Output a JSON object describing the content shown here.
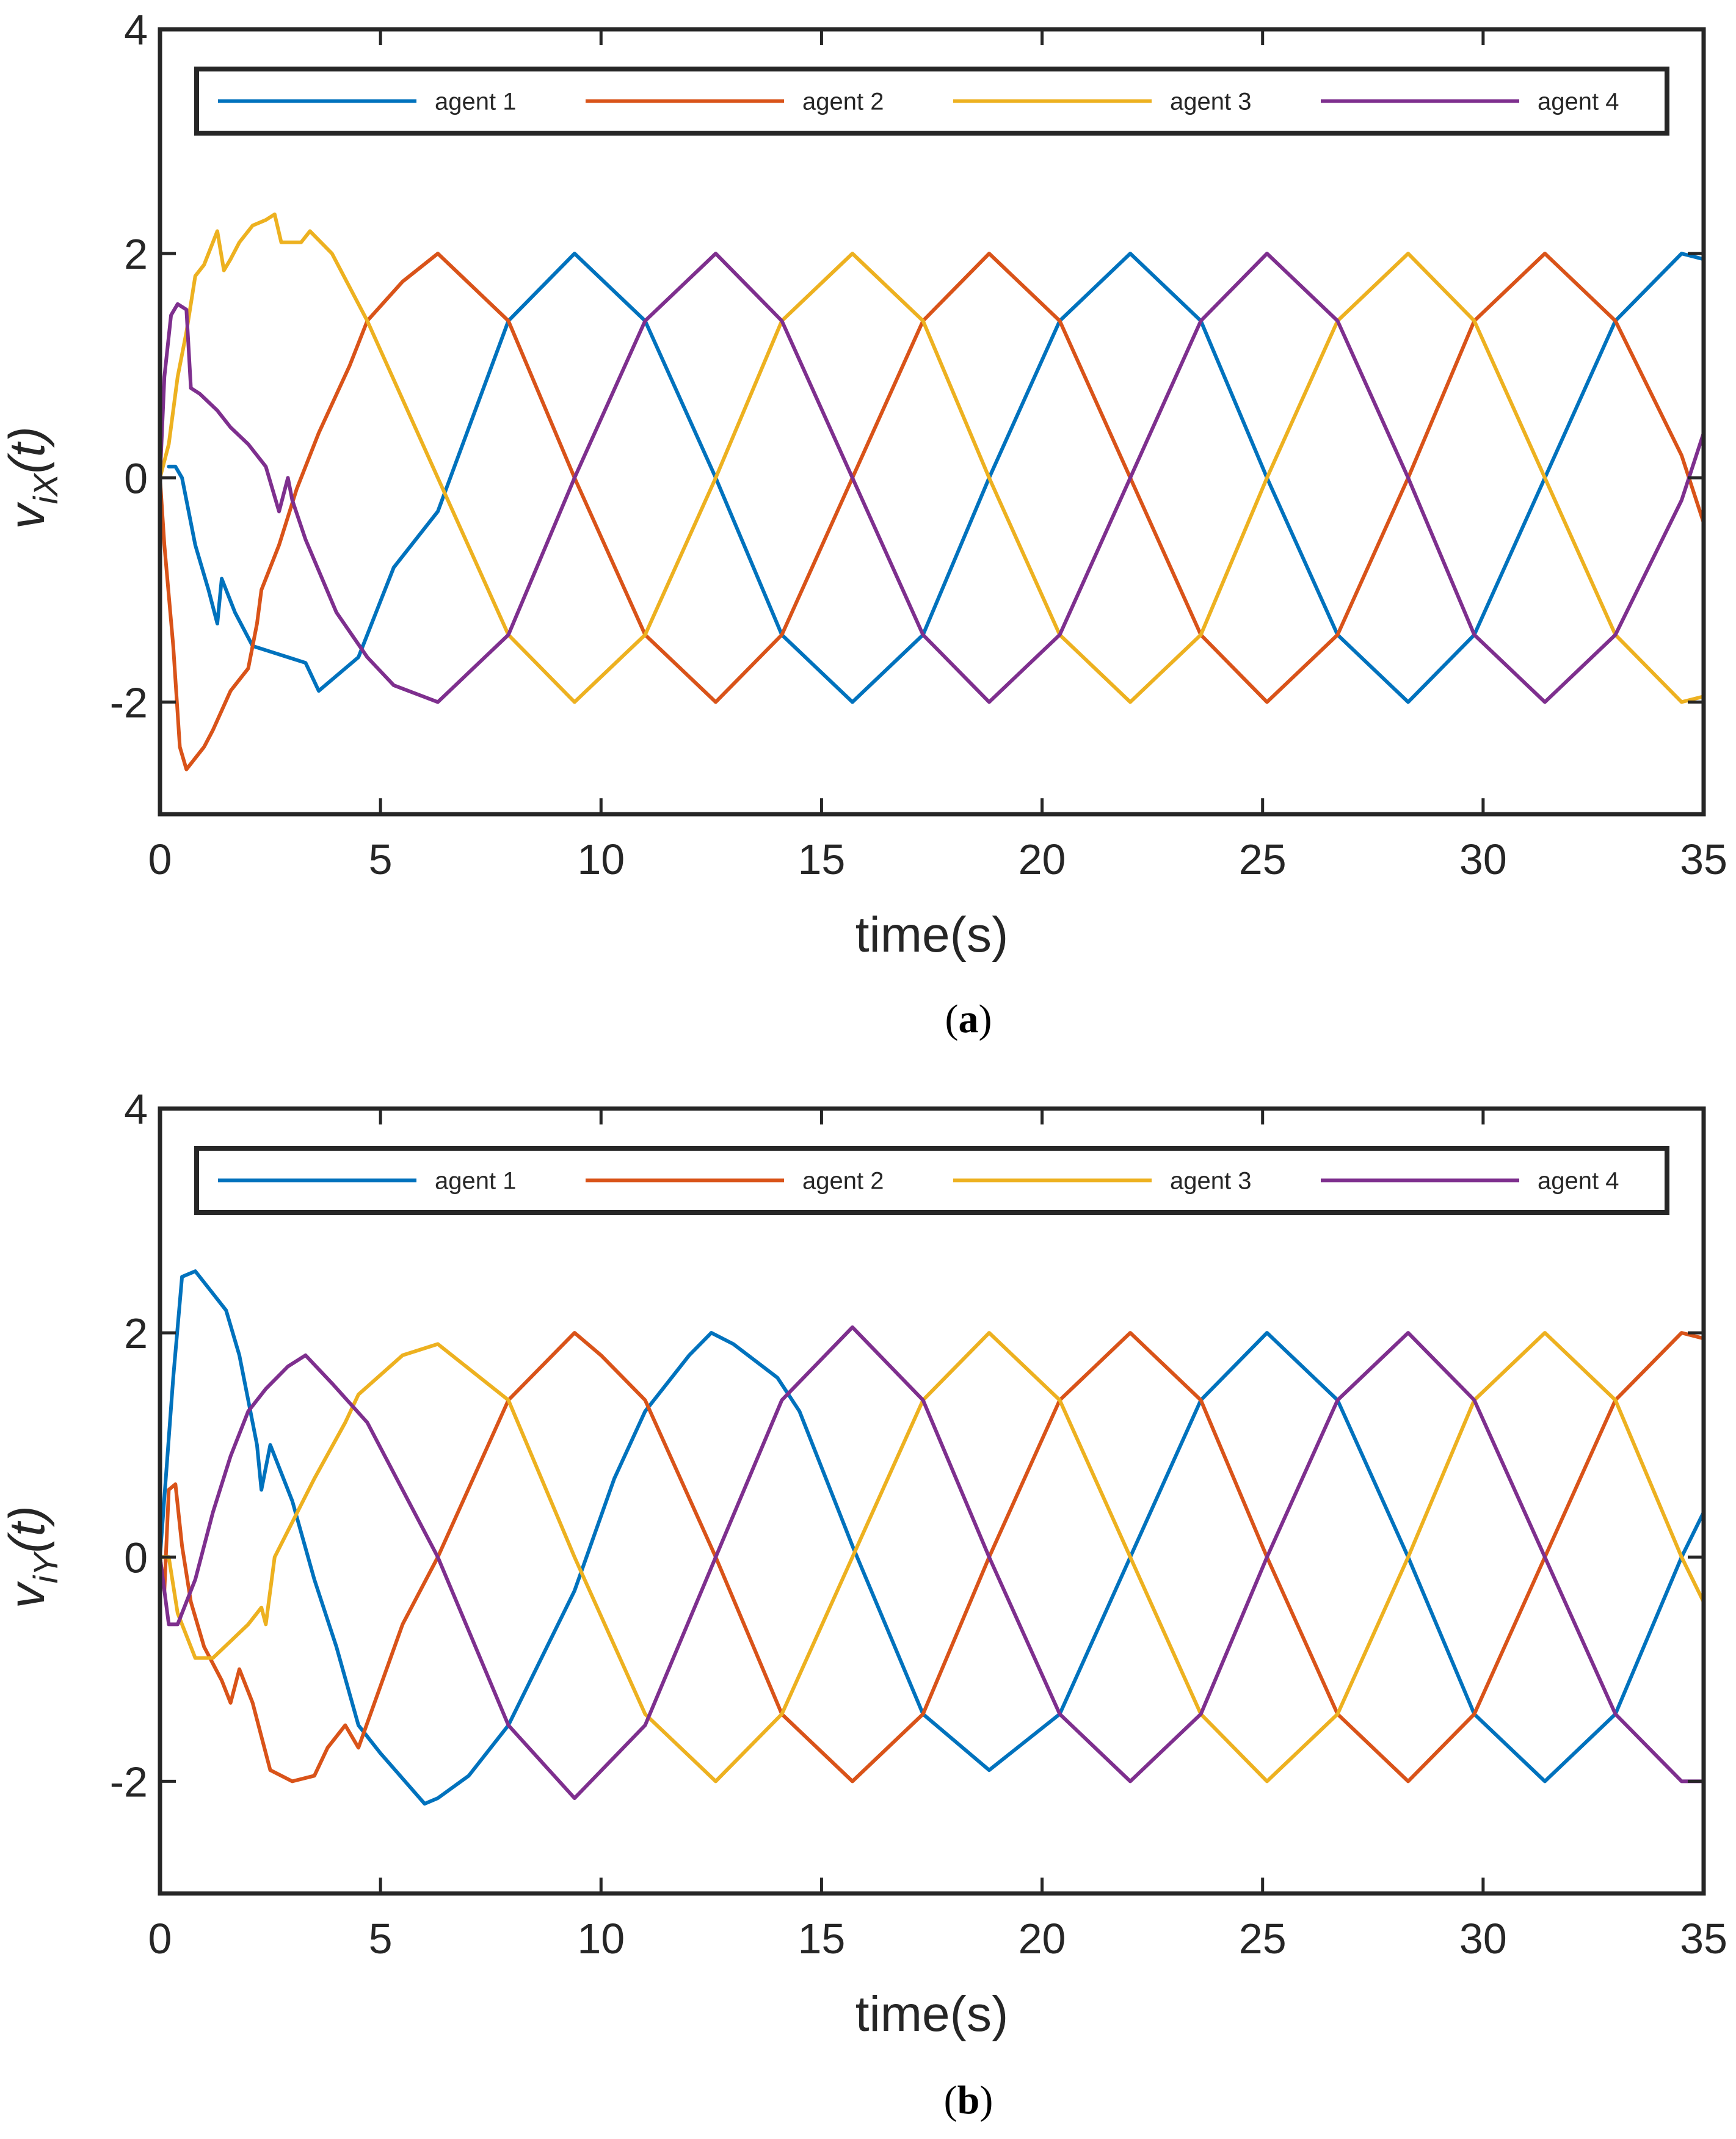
{
  "chart_data": [
    {
      "type": "line",
      "panel_label": "a",
      "ylabel": {
        "main": "v",
        "sub": "iX",
        "arg": "(t)"
      },
      "xlabel": "time(s)",
      "xlim": [
        0,
        35
      ],
      "ylim": [
        -3,
        4
      ],
      "xticks": [
        0,
        5,
        10,
        15,
        20,
        25,
        30,
        35
      ],
      "yticks": [
        -2,
        0,
        2,
        4
      ],
      "grid": false,
      "legend_position": "top",
      "series": [
        {
          "name": "agent 1",
          "color": "#0072BD",
          "x": [
            0.2,
            0.35,
            0.5,
            0.8,
            1.1,
            1.3,
            1.4,
            1.7,
            2.1,
            2.5,
            2.9,
            3.3,
            3.6,
            4.5,
            5.3,
            6.3,
            7.9,
            9.4,
            11.0,
            12.6,
            14.1,
            15.7,
            17.3,
            18.8,
            20.4,
            22.0,
            23.6,
            25.1,
            26.7,
            28.3,
            29.8,
            31.4,
            33.0,
            34.5,
            35.0
          ],
          "y": [
            0.1,
            0.1,
            0.0,
            -0.6,
            -1.0,
            -1.3,
            -0.9,
            -1.2,
            -1.5,
            -1.55,
            -1.6,
            -1.65,
            -1.9,
            -1.6,
            -0.8,
            -0.3,
            1.4,
            2.0,
            1.4,
            0.0,
            -1.4,
            -2.0,
            -1.4,
            0.0,
            1.4,
            2.0,
            1.4,
            0.0,
            -1.4,
            -2.0,
            -1.4,
            0.0,
            1.4,
            2.0,
            1.95
          ]
        },
        {
          "name": "agent 2",
          "color": "#D95319",
          "x": [
            0.0,
            0.1,
            0.3,
            0.45,
            0.6,
            1.0,
            1.2,
            1.6,
            2.0,
            2.2,
            2.3,
            2.7,
            3.1,
            3.6,
            4.3,
            4.7,
            5.5,
            6.3,
            7.9,
            9.4,
            11.0,
            12.6,
            14.1,
            15.7,
            17.3,
            18.8,
            20.4,
            22.0,
            23.6,
            25.1,
            26.7,
            28.3,
            29.8,
            31.4,
            33.0,
            34.5,
            35.0
          ],
          "y": [
            0.0,
            -0.6,
            -1.5,
            -2.4,
            -2.6,
            -2.4,
            -2.25,
            -1.9,
            -1.7,
            -1.3,
            -1.0,
            -0.6,
            -0.1,
            0.4,
            1.0,
            1.4,
            1.75,
            2.0,
            1.4,
            0.0,
            -1.4,
            -2.0,
            -1.4,
            0.0,
            1.4,
            2.0,
            1.4,
            0.0,
            -1.4,
            -2.0,
            -1.4,
            0.0,
            1.4,
            2.0,
            1.4,
            0.2,
            -0.4
          ]
        },
        {
          "name": "agent 3",
          "color": "#EDB120",
          "x": [
            0.0,
            0.2,
            0.4,
            0.6,
            0.8,
            1.0,
            1.3,
            1.45,
            1.6,
            1.8,
            2.1,
            2.4,
            2.6,
            2.75,
            3.2,
            3.4,
            3.9,
            4.7,
            6.3,
            7.9,
            9.4,
            11.0,
            12.6,
            14.1,
            15.7,
            17.3,
            18.8,
            20.4,
            22.0,
            23.6,
            25.1,
            26.7,
            28.3,
            29.8,
            31.4,
            33.0,
            34.5,
            35.0
          ],
          "y": [
            0.0,
            0.3,
            0.9,
            1.3,
            1.8,
            1.9,
            2.2,
            1.85,
            1.95,
            2.1,
            2.25,
            2.3,
            2.35,
            2.1,
            2.1,
            2.2,
            2.0,
            1.4,
            0.0,
            -1.4,
            -2.0,
            -1.4,
            0.0,
            1.4,
            2.0,
            1.4,
            0.0,
            -1.4,
            -2.0,
            -1.4,
            0.0,
            1.4,
            2.0,
            1.4,
            0.0,
            -1.4,
            -2.0,
            -1.95
          ]
        },
        {
          "name": "agent 4",
          "color": "#7E2F8E",
          "x": [
            0.0,
            0.1,
            0.25,
            0.4,
            0.6,
            0.7,
            0.9,
            1.3,
            1.6,
            2.0,
            2.4,
            2.7,
            2.9,
            3.0,
            3.3,
            4.0,
            4.7,
            5.3,
            6.3,
            7.9,
            9.4,
            11.0,
            12.6,
            14.1,
            15.7,
            17.3,
            18.8,
            20.4,
            22.0,
            23.6,
            25.1,
            26.7,
            28.3,
            29.8,
            31.4,
            33.0,
            34.5,
            35.0
          ],
          "y": [
            0.0,
            0.9,
            1.45,
            1.55,
            1.5,
            0.8,
            0.75,
            0.6,
            0.45,
            0.3,
            0.1,
            -0.3,
            0.0,
            -0.2,
            -0.55,
            -1.2,
            -1.6,
            -1.85,
            -2.0,
            -1.4,
            0.0,
            1.4,
            2.0,
            1.4,
            0.0,
            -1.4,
            -2.0,
            -1.4,
            0.0,
            1.4,
            2.0,
            1.4,
            0.0,
            -1.4,
            -2.0,
            -1.4,
            -0.2,
            0.4
          ]
        }
      ]
    },
    {
      "type": "line",
      "panel_label": "b",
      "ylabel": {
        "main": "v",
        "sub": "iY",
        "arg": "(t)"
      },
      "xlabel": "time(s)",
      "xlim": [
        0,
        35
      ],
      "ylim": [
        -3,
        4
      ],
      "xticks": [
        0,
        5,
        10,
        15,
        20,
        25,
        30,
        35
      ],
      "yticks": [
        -2,
        0,
        2,
        4
      ],
      "grid": false,
      "legend_position": "top",
      "series": [
        {
          "name": "agent 1",
          "color": "#0072BD",
          "x": [
            0.0,
            0.3,
            0.5,
            0.8,
            1.1,
            1.5,
            1.8,
            2.0,
            2.2,
            2.3,
            2.5,
            3.0,
            3.5,
            4.0,
            4.5,
            5.0,
            6.0,
            6.3,
            7.0,
            7.9,
            9.4,
            10.3,
            11.0,
            12.0,
            12.5,
            13.0,
            14.0,
            14.5,
            15.7,
            17.3,
            18.8,
            20.4,
            22.0,
            23.6,
            25.1,
            26.7,
            28.3,
            29.8,
            31.4,
            33.0,
            34.5,
            35.0
          ],
          "y": [
            0.0,
            1.6,
            2.5,
            2.55,
            2.4,
            2.2,
            1.8,
            1.4,
            1.0,
            0.6,
            1.0,
            0.5,
            -0.2,
            -0.8,
            -1.5,
            -1.75,
            -2.2,
            -2.15,
            -1.95,
            -1.5,
            -0.3,
            0.7,
            1.3,
            1.8,
            2.0,
            1.9,
            1.6,
            1.3,
            0.1,
            -1.4,
            -1.9,
            -1.4,
            0.0,
            1.4,
            2.0,
            1.4,
            0.0,
            -1.4,
            -2.0,
            -1.4,
            0.0,
            0.4
          ]
        },
        {
          "name": "agent 2",
          "color": "#D95319",
          "x": [
            0.0,
            0.1,
            0.2,
            0.35,
            0.5,
            0.7,
            1.0,
            1.4,
            1.6,
            1.8,
            2.1,
            2.3,
            2.5,
            3.0,
            3.5,
            3.8,
            4.2,
            4.5,
            5.5,
            6.3,
            7.9,
            9.4,
            10.0,
            11.0,
            12.6,
            14.1,
            15.7,
            17.3,
            18.8,
            20.4,
            22.0,
            23.6,
            25.1,
            26.7,
            28.3,
            29.8,
            31.4,
            33.0,
            34.5,
            35.0
          ],
          "y": [
            0.0,
            -0.3,
            0.6,
            0.65,
            0.1,
            -0.4,
            -0.8,
            -1.1,
            -1.3,
            -1.0,
            -1.3,
            -1.6,
            -1.9,
            -2.0,
            -1.95,
            -1.7,
            -1.5,
            -1.7,
            -0.6,
            0.0,
            1.4,
            2.0,
            1.8,
            1.4,
            0.0,
            -1.4,
            -2.0,
            -1.4,
            0.0,
            1.4,
            2.0,
            1.4,
            0.0,
            -1.4,
            -2.0,
            -1.4,
            0.0,
            1.4,
            2.0,
            1.95
          ]
        },
        {
          "name": "agent 3",
          "color": "#EDB120",
          "x": [
            0.0,
            0.2,
            0.4,
            0.8,
            1.2,
            1.6,
            2.0,
            2.3,
            2.4,
            2.6,
            3.5,
            4.2,
            4.5,
            5.5,
            6.3,
            7.9,
            9.4,
            11.0,
            12.6,
            14.1,
            15.7,
            17.3,
            18.8,
            20.4,
            22.0,
            23.6,
            25.1,
            26.7,
            28.3,
            29.8,
            31.4,
            33.0,
            34.5,
            35.0
          ],
          "y": [
            0.0,
            0.0,
            -0.5,
            -0.9,
            -0.9,
            -0.75,
            -0.6,
            -0.45,
            -0.6,
            0.0,
            0.7,
            1.2,
            1.45,
            1.8,
            1.9,
            1.4,
            0.0,
            -1.4,
            -2.0,
            -1.4,
            0.0,
            1.4,
            2.0,
            1.4,
            0.0,
            -1.4,
            -2.0,
            -1.4,
            0.0,
            1.4,
            2.0,
            1.4,
            0.0,
            -0.4
          ]
        },
        {
          "name": "agent 4",
          "color": "#7E2F8E",
          "x": [
            0.0,
            0.2,
            0.4,
            0.8,
            1.2,
            1.6,
            2.0,
            2.4,
            2.9,
            3.3,
            3.9,
            4.7,
            6.3,
            7.9,
            9.4,
            11.0,
            12.6,
            14.1,
            15.7,
            17.3,
            18.8,
            20.4,
            22.0,
            23.6,
            25.1,
            26.7,
            28.3,
            29.8,
            31.4,
            33.0,
            34.5,
            35.0
          ],
          "y": [
            0.0,
            -0.6,
            -0.6,
            -0.2,
            0.4,
            0.9,
            1.3,
            1.5,
            1.7,
            1.8,
            1.55,
            1.2,
            0.0,
            -1.5,
            -2.15,
            -1.5,
            0.0,
            1.4,
            2.05,
            1.4,
            0.0,
            -1.4,
            -2.0,
            -1.4,
            0.0,
            1.4,
            2.0,
            1.4,
            0.0,
            -1.4,
            -2.0,
            -2.0
          ]
        }
      ]
    }
  ]
}
